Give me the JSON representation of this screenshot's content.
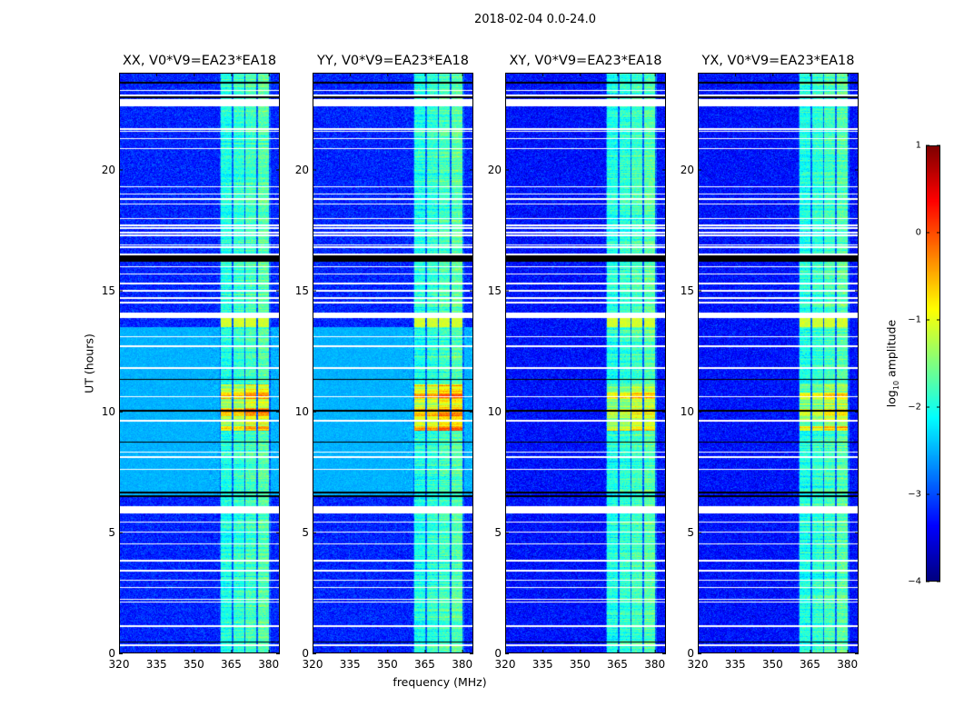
{
  "suptitle": "2018-02-04 0.0-24.0",
  "chart_data": {
    "type": "heatmap",
    "title": "2018-02-04 0.0-24.0",
    "xlabel": "frequency (MHz)",
    "ylabel": "UT (hours)",
    "xlim": [
      320,
      384.5
    ],
    "ylim": [
      0,
      24
    ],
    "xticks": [
      320,
      335,
      350,
      365,
      380
    ],
    "yticks": [
      0,
      5,
      10,
      15,
      20
    ],
    "colorbar": {
      "label_main": "log",
      "label_sub": "10",
      "label_rest": " amplitude",
      "range": [
        -4,
        1
      ],
      "ticks": [
        1,
        0,
        -1,
        -2,
        -3,
        -4
      ],
      "tick_labels": [
        "1",
        "0",
        "−1",
        "−2",
        "−3",
        "−4"
      ],
      "colormap": "jet"
    },
    "panels": [
      {
        "title": "XX, V0*V9=EA23*EA18",
        "background": -3.2,
        "elevated_hours": [
          6.5,
          13.5
        ],
        "elevated_level": -2.5,
        "hot_level": -0.5
      },
      {
        "title": "YY, V0*V9=EA23*EA18",
        "background": -3.2,
        "elevated_hours": [
          6.5,
          13.5
        ],
        "elevated_level": -2.5,
        "hot_level": -0.3
      },
      {
        "title": "XY, V0*V9=EA23*EA18",
        "background": -3.3,
        "elevated_hours": null,
        "elevated_level": null,
        "hot_level": -0.7
      },
      {
        "title": "YX, V0*V9=EA23*EA18",
        "background": -3.3,
        "elevated_hours": null,
        "elevated_level": null,
        "hot_level": -0.8
      }
    ],
    "rfi_subbands_mhz": [
      [
        361,
        365.3
      ],
      [
        366,
        370.4
      ],
      [
        371,
        375.3
      ],
      [
        376,
        380.6
      ]
    ],
    "rfi_level": -2.0,
    "hot_hours": [
      9.2,
      11.1
    ],
    "flagged_thin_hours": [
      23.3,
      23.1,
      21.7,
      21.6,
      21.3,
      20.9,
      19.3,
      19.0,
      18.8,
      18.6,
      18.0,
      17.7,
      17.6,
      17.4,
      17.3,
      16.9,
      16.8,
      16.5,
      16.0,
      15.7,
      15.3,
      15.0,
      14.7,
      14.5,
      13.1,
      12.7,
      11.8,
      10.6,
      9.6,
      8.3,
      8.1,
      7.6,
      5.4,
      5.0,
      4.5,
      3.8,
      3.4,
      3.0,
      2.7,
      2.2,
      2.1,
      1.1,
      0.3
    ],
    "flagged_thick_hours": [
      [
        22.65,
        22.95
      ],
      [
        13.85,
        14.1
      ],
      [
        5.75,
        6.05
      ]
    ],
    "dead_hours": [
      [
        23.6,
        23.65
      ],
      [
        23.0,
        23.05
      ],
      [
        16.2,
        16.45
      ],
      [
        11.3,
        11.35
      ],
      [
        10.0,
        10.05
      ],
      [
        8.7,
        8.75
      ],
      [
        6.6,
        6.65
      ],
      [
        6.45,
        6.5
      ],
      [
        0.4,
        0.45
      ]
    ]
  }
}
